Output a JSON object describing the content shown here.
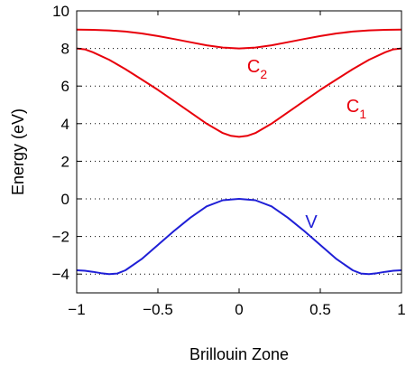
{
  "chart_data": {
    "type": "line",
    "title": "",
    "xlabel": "Brillouin Zone",
    "ylabel": "Energy (eV)",
    "xlim": [
      -1,
      1
    ],
    "ylim": [
      -5,
      10
    ],
    "xticks": [
      -1,
      -0.5,
      0,
      0.5,
      1
    ],
    "xtick_labels": [
      "−1",
      "−0.5",
      "0",
      "0.5",
      "1"
    ],
    "yticks": [
      -4,
      -2,
      0,
      2,
      4,
      6,
      8,
      10
    ],
    "ytick_labels": [
      "−4",
      "−2",
      "0",
      "2",
      "4",
      "6",
      "8",
      "10"
    ],
    "grid": "horizontal-dotted",
    "series": [
      {
        "label_main": "C",
        "label_sub": "2",
        "color": "#e8000b",
        "x": [
          -1,
          -0.9,
          -0.8,
          -0.7,
          -0.6,
          -0.5,
          -0.4,
          -0.3,
          -0.2,
          -0.1,
          0,
          0.1,
          0.2,
          0.3,
          0.4,
          0.5,
          0.6,
          0.7,
          0.8,
          0.9,
          1
        ],
        "y": [
          9.0,
          8.99,
          8.96,
          8.9,
          8.8,
          8.66,
          8.5,
          8.33,
          8.17,
          8.05,
          8.0,
          8.05,
          8.17,
          8.33,
          8.5,
          8.66,
          8.8,
          8.9,
          8.96,
          8.99,
          9.0
        ]
      },
      {
        "label_main": "C",
        "label_sub": "1",
        "color": "#e8000b",
        "x": [
          -1,
          -0.95,
          -0.9,
          -0.8,
          -0.7,
          -0.6,
          -0.5,
          -0.4,
          -0.3,
          -0.2,
          -0.1,
          -0.05,
          0,
          0.05,
          0.1,
          0.2,
          0.3,
          0.4,
          0.5,
          0.6,
          0.7,
          0.8,
          0.9,
          0.95,
          1
        ],
        "y": [
          8.0,
          7.95,
          7.8,
          7.4,
          6.9,
          6.35,
          5.8,
          5.2,
          4.6,
          4.0,
          3.5,
          3.35,
          3.3,
          3.35,
          3.5,
          4.0,
          4.6,
          5.2,
          5.8,
          6.35,
          6.9,
          7.4,
          7.8,
          7.95,
          8.0
        ]
      },
      {
        "label_main": "V",
        "label_sub": "",
        "color": "#1f1fd6",
        "x": [
          -1,
          -0.95,
          -0.9,
          -0.85,
          -0.8,
          -0.75,
          -0.7,
          -0.6,
          -0.5,
          -0.4,
          -0.3,
          -0.2,
          -0.1,
          0,
          0.1,
          0.2,
          0.3,
          0.4,
          0.5,
          0.6,
          0.7,
          0.75,
          0.8,
          0.85,
          0.9,
          0.95,
          1
        ],
        "y": [
          -3.8,
          -3.82,
          -3.88,
          -3.95,
          -4.0,
          -3.97,
          -3.8,
          -3.2,
          -2.45,
          -1.7,
          -1.0,
          -0.4,
          -0.07,
          0.0,
          -0.07,
          -0.4,
          -1.0,
          -1.7,
          -2.45,
          -3.2,
          -3.8,
          -3.97,
          -4.0,
          -3.95,
          -3.88,
          -3.82,
          -3.8
        ]
      }
    ]
  }
}
